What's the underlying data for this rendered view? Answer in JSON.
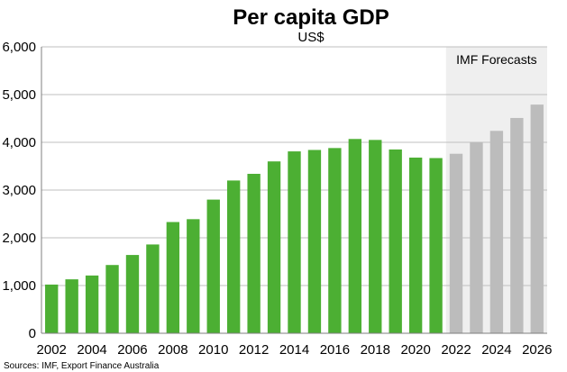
{
  "chart_data": {
    "type": "bar",
    "title": "Per capita GDP",
    "subtitle": "US$",
    "ylim": [
      0,
      6000
    ],
    "yticks": [
      0,
      1000,
      2000,
      3000,
      4000,
      5000,
      6000
    ],
    "ytick_labels": [
      "0",
      "1,000",
      "2,000",
      "3,000",
      "4,000",
      "5,000",
      "6,000"
    ],
    "x": [
      2002,
      2003,
      2004,
      2005,
      2006,
      2007,
      2008,
      2009,
      2010,
      2011,
      2012,
      2013,
      2014,
      2015,
      2016,
      2017,
      2018,
      2019,
      2020,
      2021,
      2022,
      2023,
      2024,
      2025,
      2026
    ],
    "xtick_labels": [
      "2002",
      "2004",
      "2006",
      "2008",
      "2010",
      "2012",
      "2014",
      "2016",
      "2018",
      "2020",
      "2022",
      "2024",
      "2026"
    ],
    "values": [
      1020,
      1130,
      1210,
      1430,
      1640,
      1860,
      2330,
      2390,
      2800,
      3200,
      3340,
      3600,
      3810,
      3840,
      3880,
      4070,
      4050,
      3850,
      3680,
      3670,
      3760,
      4000,
      4240,
      4510,
      4790
    ],
    "forecast_start": 2022,
    "forecast_label": "IMF Forecasts",
    "grid": "horizontal",
    "source": "Sources: IMF, Export Finance Australia"
  },
  "colors": {
    "actual": "#4caf33",
    "forecast": "#bcbcbc",
    "forecast_band": "#efefef",
    "grid": "#bfbfbf",
    "axis": "#7f7f7f"
  }
}
